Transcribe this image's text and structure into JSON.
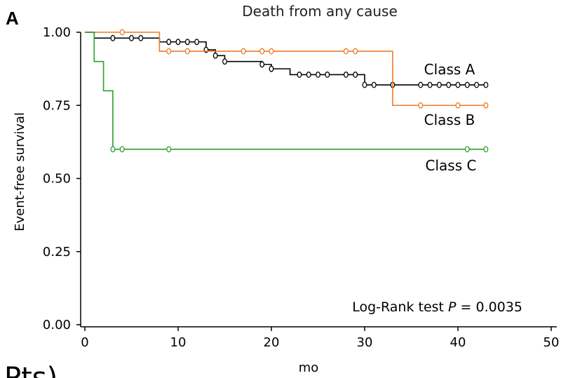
{
  "panel_letter": "A",
  "clipped_text": "Pts)",
  "chart_data": {
    "type": "line",
    "title": "Death from any cause",
    "xlabel": "mo",
    "ylabel": "Event-free survival",
    "xlim": [
      0,
      50
    ],
    "ylim": [
      0,
      1
    ],
    "xticks": [
      0,
      10,
      20,
      30,
      40,
      50
    ],
    "yticks": [
      0,
      0.25,
      0.5,
      0.75,
      1.0
    ],
    "xtick_labels": [
      "0",
      "10",
      "20",
      "30",
      "40",
      "50"
    ],
    "ytick_labels": [
      "0.00",
      "0.25",
      "0.50",
      "0.75",
      "1.00"
    ],
    "grid": false,
    "annotation": {
      "prefix": "Log-Rank test ",
      "p": "P",
      "suffix": " = 0.0035"
    },
    "series": [
      {
        "name": "Class A",
        "color": "#000000",
        "steps": [
          [
            0,
            1.0
          ],
          [
            1,
            0.98
          ],
          [
            8,
            0.967
          ],
          [
            13,
            0.94
          ],
          [
            14,
            0.92
          ],
          [
            15,
            0.9
          ],
          [
            19,
            0.89
          ],
          [
            20,
            0.875
          ],
          [
            22,
            0.855
          ],
          [
            30,
            0.82
          ],
          [
            43,
            0.82
          ]
        ],
        "censored": [
          [
            3,
            0.98
          ],
          [
            5,
            0.98
          ],
          [
            6,
            0.98
          ],
          [
            9,
            0.967
          ],
          [
            10,
            0.967
          ],
          [
            11,
            0.967
          ],
          [
            12,
            0.967
          ],
          [
            13,
            0.94
          ],
          [
            14,
            0.92
          ],
          [
            15,
            0.9
          ],
          [
            19,
            0.89
          ],
          [
            20,
            0.875
          ],
          [
            23,
            0.855
          ],
          [
            24,
            0.855
          ],
          [
            25,
            0.855
          ],
          [
            26,
            0.855
          ],
          [
            28,
            0.855
          ],
          [
            29,
            0.855
          ],
          [
            30,
            0.82
          ],
          [
            31,
            0.82
          ],
          [
            33,
            0.82
          ],
          [
            36,
            0.82
          ],
          [
            37,
            0.82
          ],
          [
            38,
            0.82
          ],
          [
            39,
            0.82
          ],
          [
            40,
            0.82
          ],
          [
            41,
            0.82
          ],
          [
            42,
            0.82
          ],
          [
            43,
            0.82
          ]
        ]
      },
      {
        "name": "Class B",
        "color": "#f07a28",
        "steps": [
          [
            0,
            1.0
          ],
          [
            8,
            0.935
          ],
          [
            33,
            0.75
          ],
          [
            43,
            0.75
          ]
        ],
        "censored": [
          [
            4,
            1.0
          ],
          [
            9,
            0.935
          ],
          [
            11,
            0.935
          ],
          [
            17,
            0.935
          ],
          [
            19,
            0.935
          ],
          [
            20,
            0.935
          ],
          [
            28,
            0.935
          ],
          [
            29,
            0.935
          ],
          [
            36,
            0.75
          ],
          [
            40,
            0.75
          ],
          [
            43,
            0.75
          ]
        ]
      },
      {
        "name": "Class C",
        "color": "#2ca02c",
        "steps": [
          [
            0,
            1.0
          ],
          [
            1,
            0.9
          ],
          [
            2,
            0.8
          ],
          [
            3,
            0.6
          ],
          [
            43,
            0.6
          ]
        ],
        "censored": [
          [
            3,
            0.6
          ],
          [
            4,
            0.6
          ],
          [
            9,
            0.6
          ],
          [
            41,
            0.6
          ],
          [
            43,
            0.6
          ]
        ]
      }
    ]
  }
}
